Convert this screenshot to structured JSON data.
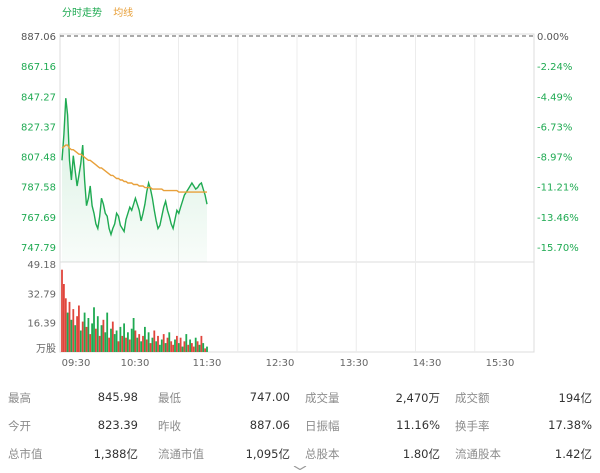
{
  "legend": {
    "intraday": "分时走势",
    "average": "均线"
  },
  "colors": {
    "up": "#e0453c",
    "down": "#1faa52",
    "price_line": "#1faa52",
    "avg_line": "#e8a03a",
    "axis_text": "#666666",
    "grid": "#dcdcdc"
  },
  "chart_data": [
    {
      "type": "line",
      "ylim": [
        737.85,
        887.06
      ],
      "y_ticks": [
        "887.06",
        "867.16",
        "847.27",
        "827.37",
        "807.48",
        "787.58",
        "767.69",
        "747.79"
      ],
      "pct_ticks": [
        "0.00%",
        "-2.24%",
        "-4.49%",
        "-6.73%",
        "-8.97%",
        "-11.21%",
        "-13.46%",
        "-15.70%"
      ],
      "time_ticks": [
        "09:30",
        "10:30",
        "11:30",
        "12:30",
        "13:30",
        "14:30",
        "15:30"
      ],
      "prev_close": 887.06,
      "series": [
        {
          "values": [
            805,
            822,
            846,
            835,
            805,
            792,
            808,
            798,
            788,
            795,
            803,
            815,
            792,
            775,
            780,
            788,
            775,
            770,
            763,
            760,
            768,
            780,
            776,
            770,
            768,
            760,
            756,
            760,
            763,
            770,
            768,
            762,
            760,
            758,
            766,
            770,
            774,
            772,
            776,
            780,
            776,
            772,
            765,
            770,
            776,
            784,
            790,
            786,
            780,
            772,
            765,
            760,
            762,
            768,
            774,
            778,
            772,
            768,
            763,
            760,
            766,
            772,
            770,
            774,
            778,
            782,
            784,
            786,
            788,
            790,
            788,
            786,
            787,
            789,
            790,
            786,
            782,
            776
          ]
        },
        {
          "values": [
            813,
            814,
            815,
            815,
            813,
            812,
            812,
            811,
            810,
            809,
            809,
            808,
            807,
            806,
            805,
            805,
            804,
            803,
            802,
            801,
            800,
            800,
            799,
            798,
            797,
            796,
            795,
            795,
            794,
            793,
            793,
            792,
            792,
            791,
            791,
            790,
            790,
            790,
            789,
            789,
            789,
            788,
            788,
            788,
            787,
            787,
            787,
            787,
            786,
            786,
            786,
            786,
            786,
            786,
            785,
            785,
            785,
            785,
            785,
            785,
            785,
            785,
            784,
            784,
            784,
            784,
            784,
            784,
            784,
            784,
            784,
            784,
            784,
            784,
            784,
            784,
            784,
            784
          ]
        }
      ]
    },
    {
      "type": "bar",
      "y_ticks": [
        "49.18",
        "32.79",
        "16.39"
      ],
      "unit": "万股",
      "ylim": [
        0,
        49.18
      ],
      "values": [
        46,
        38,
        30,
        22,
        28,
        18,
        24,
        15,
        20,
        26,
        12,
        17,
        22,
        14,
        19,
        10,
        16,
        25,
        13,
        20,
        9,
        15,
        18,
        11,
        22,
        8,
        13,
        17,
        10,
        12,
        6,
        14,
        9,
        16,
        8,
        11,
        7,
        13,
        19,
        12,
        8,
        10,
        6,
        9,
        14,
        7,
        11,
        5,
        8,
        12,
        6,
        9,
        4,
        7,
        10,
        5,
        8,
        11,
        6,
        4,
        7,
        9,
        5,
        8,
        3,
        6,
        10,
        4,
        7,
        5,
        3,
        8,
        6,
        4,
        9,
        5,
        2,
        3
      ],
      "colors": [
        "u",
        "u",
        "u",
        "d",
        "u",
        "d",
        "u",
        "d",
        "u",
        "u",
        "d",
        "u",
        "d",
        "u",
        "d",
        "u",
        "d",
        "d",
        "u",
        "d",
        "u",
        "d",
        "u",
        "d",
        "d",
        "u",
        "d",
        "u",
        "d",
        "d",
        "u",
        "d",
        "u",
        "d",
        "u",
        "d",
        "u",
        "d",
        "d",
        "u",
        "d",
        "u",
        "d",
        "u",
        "d",
        "u",
        "d",
        "u",
        "d",
        "u",
        "d",
        "u",
        "d",
        "d",
        "u",
        "d",
        "u",
        "d",
        "u",
        "u",
        "d",
        "u",
        "d",
        "u",
        "d",
        "u",
        "d",
        "u",
        "d",
        "u",
        "u",
        "d",
        "u",
        "d",
        "u",
        "d",
        "u",
        "d"
      ]
    }
  ],
  "stats": [
    [
      {
        "label": "最高",
        "value": "845.98"
      },
      {
        "label": "最低",
        "value": "747.00"
      },
      {
        "label": "成交量",
        "value": "2,470万"
      },
      {
        "label": "成交额",
        "value": "194亿"
      }
    ],
    [
      {
        "label": "今开",
        "value": "823.39"
      },
      {
        "label": "昨收",
        "value": "887.06"
      },
      {
        "label": "日振幅",
        "value": "11.16%"
      },
      {
        "label": "换手率",
        "value": "17.38%"
      }
    ],
    [
      {
        "label": "总市值",
        "value": "1,388亿"
      },
      {
        "label": "流通市值",
        "value": "1,095亿"
      },
      {
        "label": "总股本",
        "value": "1.80亿"
      },
      {
        "label": "流通股本",
        "value": "1.42亿"
      }
    ]
  ]
}
